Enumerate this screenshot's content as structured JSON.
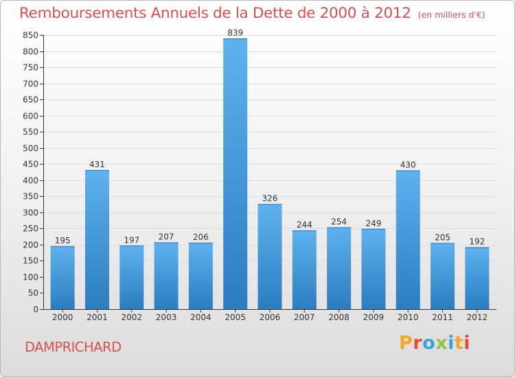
{
  "header": {
    "title": "Remboursements Annuels de la Dette de 2000 à 2012",
    "unit": "(en milliers d'€)"
  },
  "footer": {
    "place": "DAMPRICHARD",
    "brand": {
      "letters": [
        "P",
        "r",
        "o",
        "x",
        "i",
        "t",
        "i"
      ],
      "colors": [
        "#f5a623",
        "#e8492f",
        "#35a2dd",
        "#8dc63f",
        "#35a2dd",
        "#f5a623",
        "#e8492f"
      ]
    }
  },
  "chart_data": {
    "type": "bar",
    "categories": [
      "2000",
      "2001",
      "2002",
      "2003",
      "2004",
      "2005",
      "2006",
      "2007",
      "2008",
      "2009",
      "2010",
      "2011",
      "2012"
    ],
    "values": [
      195,
      431,
      197,
      207,
      206,
      839,
      326,
      244,
      254,
      249,
      430,
      205,
      192
    ],
    "title": "Remboursements Annuels de la Dette de 2000 à 2012",
    "ylabel": "",
    "xlabel": "",
    "ylim": [
      0,
      850
    ],
    "ytick_step": 50,
    "grid": true,
    "bar_color": "#3a92d6",
    "colors": {
      "title": "#d94e4e",
      "axis": "#333333",
      "grid": "#dddddd"
    }
  }
}
